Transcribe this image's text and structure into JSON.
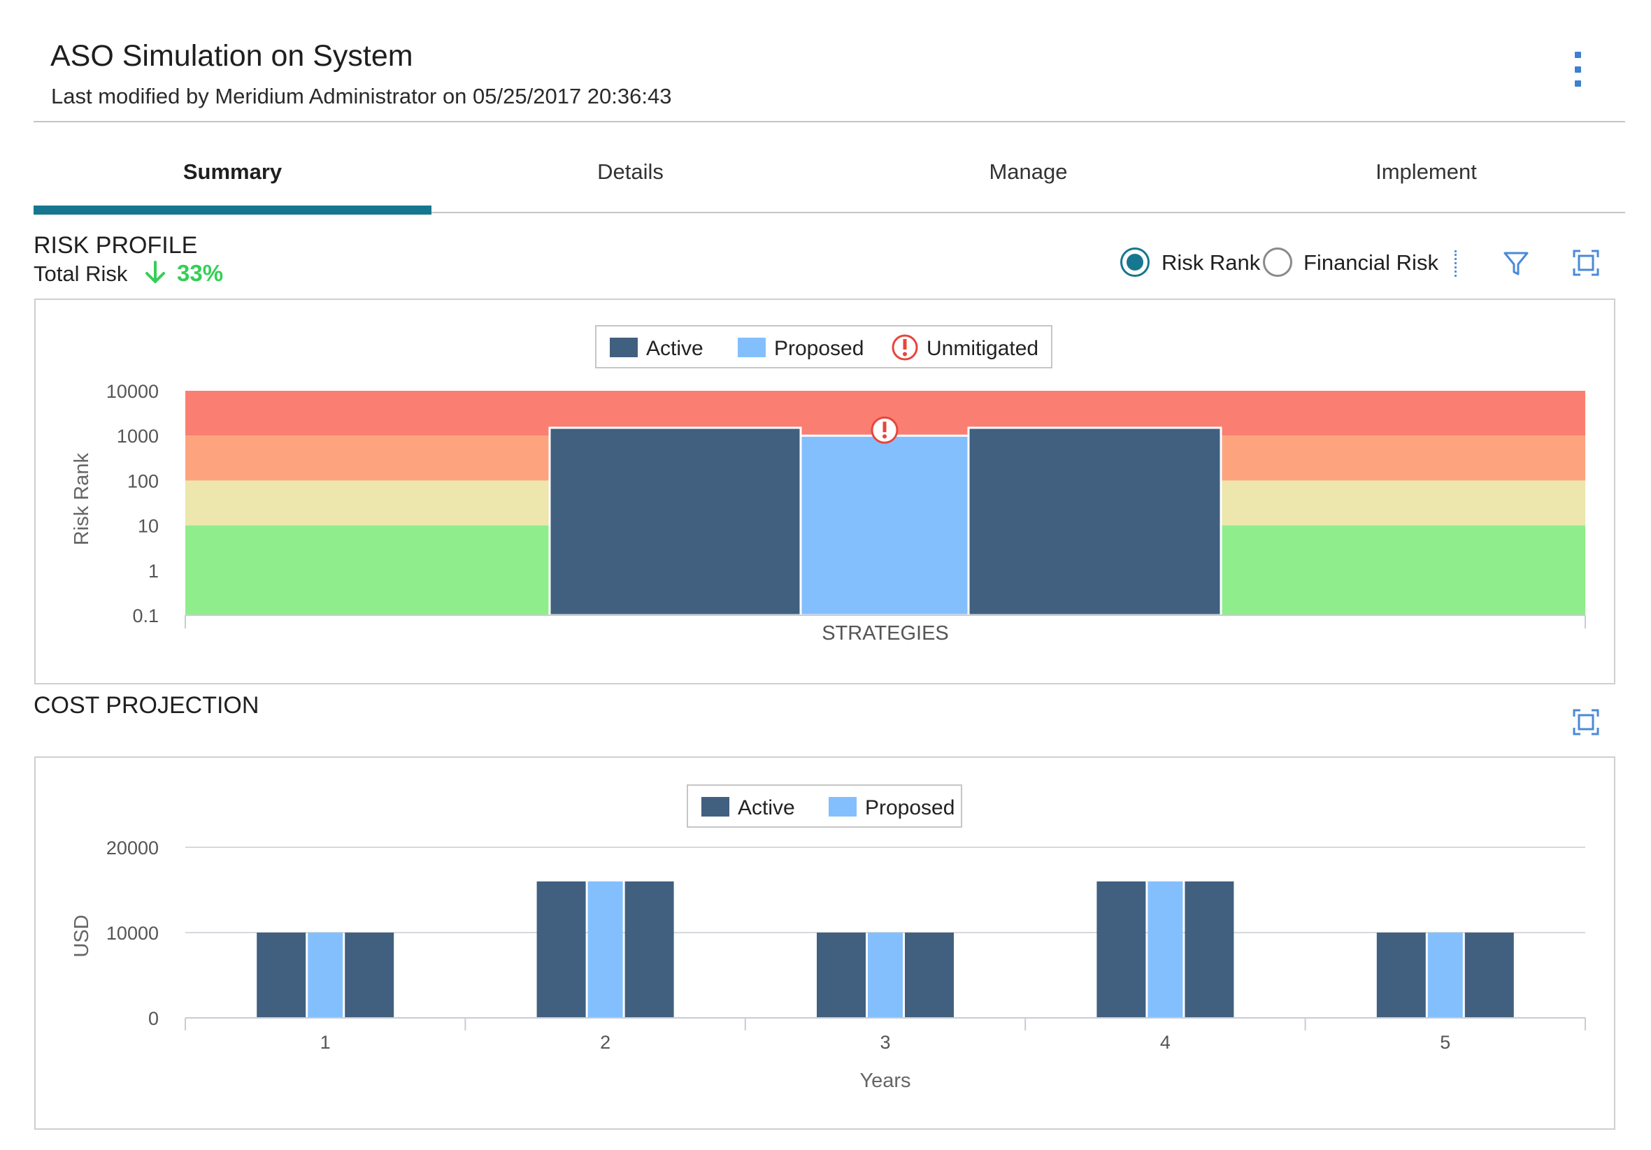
{
  "header": {
    "title": "ASO Simulation on System",
    "subtitle": "Last modified by Meridium Administrator on 05/25/2017 20:36:43",
    "menu_icon": "kebab-menu-icon"
  },
  "tabs": [
    {
      "label": "Summary",
      "active": true
    },
    {
      "label": "Details",
      "active": false
    },
    {
      "label": "Manage",
      "active": false
    },
    {
      "label": "Implement",
      "active": false
    }
  ],
  "colors": {
    "accent": "#17778f",
    "active_series": "#41607f",
    "proposed_series": "#84bffd",
    "positive_change": "#33cf55",
    "zone_red": "#fa7f72",
    "zone_orange": "#fda47f",
    "zone_yellow": "#ede6ad",
    "zone_green": "#90ed8c",
    "unmitigated": "#e8453c"
  },
  "risk_profile": {
    "heading": "RISK PROFILE",
    "total_risk_label": "Total Risk",
    "total_risk_change": "33%",
    "total_risk_direction": "down",
    "radio_options": [
      {
        "label": "Risk Rank",
        "selected": true
      },
      {
        "label": "Financial Risk",
        "selected": false
      }
    ],
    "icons": [
      "arrow-down-icon",
      "filter-icon",
      "expand-icon"
    ]
  },
  "cost_projection": {
    "heading": "COST PROJECTION",
    "icons": [
      "expand-icon"
    ]
  },
  "chart_data": [
    {
      "type": "bar",
      "name": "risk_profile",
      "legend": [
        "Active",
        "Proposed",
        "Unmitigated"
      ],
      "legend_position": "top-center",
      "xlabel": "STRATEGIES",
      "ylabel": "Risk Rank",
      "y_scale": "log",
      "y_ticks": [
        "10000",
        "1000",
        "100",
        "10",
        "1",
        "0.1"
      ],
      "ylim": [
        0.1,
        10000
      ],
      "background_zones": [
        {
          "from": 1000,
          "to": 10000,
          "color": "red"
        },
        {
          "from": 100,
          "to": 1000,
          "color": "orange"
        },
        {
          "from": 10,
          "to": 100,
          "color": "yellow"
        },
        {
          "from": 0.1,
          "to": 10,
          "color": "green"
        }
      ],
      "series": [
        {
          "name": "Active",
          "values": [
            1500
          ]
        },
        {
          "name": "Proposed",
          "values": [
            1000
          ],
          "unmitigated_marker": true
        },
        {
          "name": "Active",
          "values": [
            1500
          ]
        }
      ],
      "grid": false
    },
    {
      "type": "bar",
      "name": "cost_projection",
      "legend": [
        "Active",
        "Proposed"
      ],
      "legend_position": "top-center",
      "xlabel": "Years",
      "ylabel": "USD",
      "categories": [
        "1",
        "2",
        "3",
        "4",
        "5"
      ],
      "y_ticks": [
        "20000",
        "10000",
        "0"
      ],
      "ylim": [
        0,
        20000
      ],
      "series": [
        {
          "name": "Active",
          "values": [
            10000,
            16000,
            10000,
            16000,
            10000
          ]
        },
        {
          "name": "Proposed",
          "values": [
            10000,
            16000,
            10000,
            16000,
            10000
          ]
        },
        {
          "name": "Active",
          "values": [
            10000,
            16000,
            10000,
            16000,
            10000
          ]
        }
      ],
      "grid": true
    }
  ]
}
